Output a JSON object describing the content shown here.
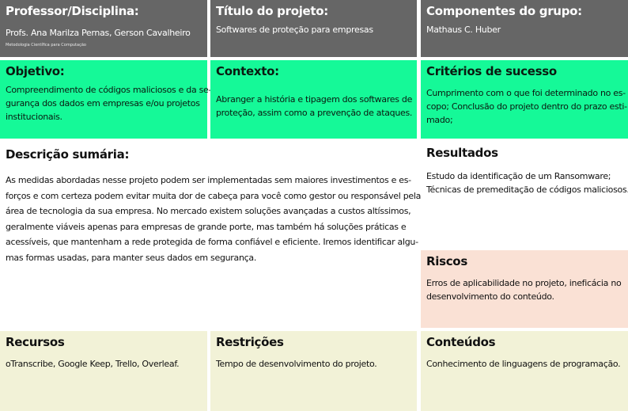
{
  "colors": {
    "header": "#666666",
    "green": "#15f998",
    "risk": "#fae1d5",
    "bottom": "#f2f2d7"
  },
  "professor": {
    "title": "Professor/Disciplina:",
    "names": "Profs. Ana Marilza Pernas, Gerson Cavalheiro",
    "course": "Metodologia Científica para Computação"
  },
  "titulo": {
    "title": "Título do projeto:",
    "text": "Softwares de proteção para empresas"
  },
  "componentes": {
    "title": "Componentes do grupo:",
    "text": "Mathaus C. Huber"
  },
  "objetivo": {
    "title": "Objetivo:",
    "lines": [
      "Compreendimento de códigos maliciosos e da se-",
      "gurança dos dados em empresas e/ou projetos",
      "institucionais."
    ]
  },
  "contexto": {
    "title": "Contexto:",
    "lines": [
      "Abranger a história e tipagem dos softwares de",
      "proteção, assim como a prevenção de ataques."
    ]
  },
  "criterios": {
    "title": "Critérios de sucesso",
    "lines": [
      "Cumprimento com o que foi determinado no es-",
      "copo; Conclusão do projeto dentro do prazo esti-",
      "mado;"
    ]
  },
  "descricao": {
    "title": "Descrição sumária:",
    "lines": [
      "As medidas abordadas nesse projeto podem ser implementadas sem maiores investimentos e es-",
      "forços e com certeza podem evitar muita dor de cabeça para você como gestor ou responsável pela",
      "área de tecnologia da sua empresa.  No mercado existem soluções avançadas a custos altíssimos,",
      "geralmente viáveis apenas para empresas de grande porte, mas também há soluções práticas e",
      "acessíveis, que mantenham a rede protegida de forma confiável e eficiente.  Iremos identificar algu-",
      "mas formas usadas, para manter seus dados em segurança."
    ]
  },
  "resultados": {
    "title": "Resultados",
    "lines": [
      "Estudo da identificação de um Ransomware;",
      "Técnicas de premeditação de códigos maliciosos."
    ]
  },
  "riscos": {
    "title": "Riscos",
    "lines": [
      "Erros de aplicabilidade no projeto, ineficácia no",
      "desenvolvimento do conteúdo."
    ]
  },
  "recursos": {
    "title": "Recursos",
    "text": "oTranscribe, Google Keep, Trello, Overleaf."
  },
  "restricoes": {
    "title": "Restrições",
    "text": "Tempo de desenvolvimento do projeto."
  },
  "conteudos": {
    "title": "Conteúdos",
    "text": "Conhecimento de linguagens de programação."
  }
}
